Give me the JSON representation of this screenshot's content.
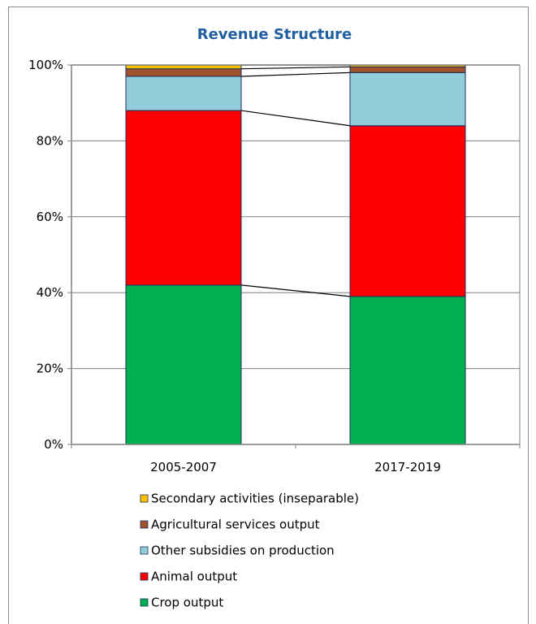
{
  "chart_data": {
    "type": "bar",
    "stacked": true,
    "percent": true,
    "title": "Revenue Structure",
    "categories": [
      "2005-2007",
      "2017-2019"
    ],
    "ylim": [
      0,
      100
    ],
    "yticks": [
      "0%",
      "20%",
      "40%",
      "60%",
      "80%",
      "100%"
    ],
    "grid": true,
    "series_lines": true,
    "legend_position": "bottom",
    "series": [
      {
        "name": "Crop output",
        "color": "#00b050",
        "values": [
          42,
          39
        ]
      },
      {
        "name": "Animal output",
        "color": "#ff0000",
        "values": [
          46,
          45
        ]
      },
      {
        "name": "Other subsidies on production",
        "color": "#92cddc",
        "values": [
          9,
          14
        ]
      },
      {
        "name": "Agricultural services output",
        "color": "#a0522d",
        "values": [
          2,
          1.5
        ]
      },
      {
        "name": "Secondary activities (inseparable)",
        "color": "#ffc000",
        "values": [
          1,
          0.5
        ]
      }
    ]
  }
}
